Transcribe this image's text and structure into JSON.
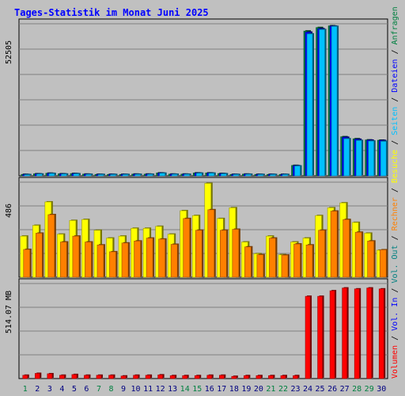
{
  "chart_data": {
    "type": "bar",
    "title": "Tages-Statistik im Monat Juni 2025",
    "categories": [
      "1",
      "2",
      "3",
      "4",
      "5",
      "6",
      "7",
      "8",
      "9",
      "10",
      "11",
      "12",
      "13",
      "14",
      "15",
      "16",
      "17",
      "18",
      "19",
      "20",
      "21",
      "22",
      "23",
      "24",
      "25",
      "26",
      "27",
      "28",
      "29",
      "30"
    ],
    "weekend_days": [
      "1",
      "7",
      "8",
      "14",
      "15",
      "21",
      "22",
      "28",
      "29"
    ],
    "panels": [
      {
        "name": "top",
        "ymax_label": "52505",
        "ylim": [
          0,
          52505
        ],
        "series": [
          {
            "name": "Anfragen",
            "color": "#008040",
            "values": [
              500,
              700,
              900,
              700,
              800,
              600,
              500,
              500,
              500,
              600,
              600,
              1000,
              600,
              600,
              1000,
              1000,
              800,
              500,
              600,
              500,
              500,
              500,
              3600,
              50000,
              51200,
              51800,
              13500,
              12800,
              12400,
              12300
            ]
          },
          {
            "name": "Dateien",
            "color": "#0000ff",
            "values": [
              450,
              650,
              850,
              650,
              750,
              550,
              480,
              480,
              480,
              550,
              560,
              950,
              560,
              560,
              950,
              950,
              750,
              480,
              560,
              480,
              480,
              480,
              3500,
              49600,
              50800,
              51700,
              13300,
              12600,
              12300,
              12200
            ]
          },
          {
            "name": "Seiten",
            "color": "#00c0ff",
            "values": [
              400,
              600,
              800,
              600,
              700,
              500,
              450,
              450,
              450,
              500,
              520,
              900,
              520,
              520,
              900,
              900,
              700,
              450,
              520,
              450,
              450,
              450,
              3400,
              49000,
              50500,
              51600,
              12800,
              12200,
              12000,
              11900
            ]
          }
        ]
      },
      {
        "name": "middle",
        "ymax_label": "486",
        "ylim": [
          0,
          486
        ],
        "series": [
          {
            "name": "Besuche",
            "color": "#ffff00",
            "values": [
              210,
              265,
              385,
              220,
              290,
              295,
              240,
              200,
              210,
              250,
              250,
              260,
              220,
              340,
              315,
              480,
              300,
              355,
              180,
              120,
              210,
              115,
              180,
              200,
              315,
              355,
              380,
              280,
              225,
              138
            ]
          },
          {
            "name": "Rechner",
            "color": "#ff8000",
            "values": [
              142,
              225,
              320,
              180,
              210,
              180,
              165,
              130,
              175,
              185,
              200,
              195,
              168,
              300,
              240,
              345,
              240,
              245,
              155,
              115,
              200,
              113,
              170,
              165,
              240,
              338,
              295,
              230,
              185,
              140
            ]
          }
        ]
      },
      {
        "name": "bottom",
        "ymax_label": "514.07 MB",
        "ylim": [
          0,
          514.07
        ],
        "series": [
          {
            "name": "Volumen",
            "color": "#ff0000",
            "values": [
              18,
              28,
              26,
              18,
              22,
              18,
              18,
              18,
              14,
              18,
              18,
              20,
              16,
              16,
              16,
              18,
              18,
              12,
              16,
              16,
              16,
              16,
              16,
              445,
              445,
              475,
              490,
              485,
              490,
              485
            ]
          }
        ]
      }
    ],
    "right_legend": [
      {
        "label": "Volumen",
        "color": "#ff0000"
      },
      {
        "label": "Vol. In",
        "color": "#0000ff"
      },
      {
        "label": "Vol. Out",
        "color": "#008080"
      },
      {
        "label": "Rechner",
        "color": "#ff8000"
      },
      {
        "label": "Besuche",
        "color": "#ffff00"
      },
      {
        "label": "Seiten",
        "color": "#00c0ff"
      },
      {
        "label": "Dateien",
        "color": "#0000ff"
      },
      {
        "label": "Anfragen",
        "color": "#008040"
      }
    ],
    "separator": "/",
    "colors": {
      "background": "#c0c0c0",
      "title": "#0000ff",
      "weekday_label": "#000080",
      "weekend_label": "#008040"
    }
  }
}
